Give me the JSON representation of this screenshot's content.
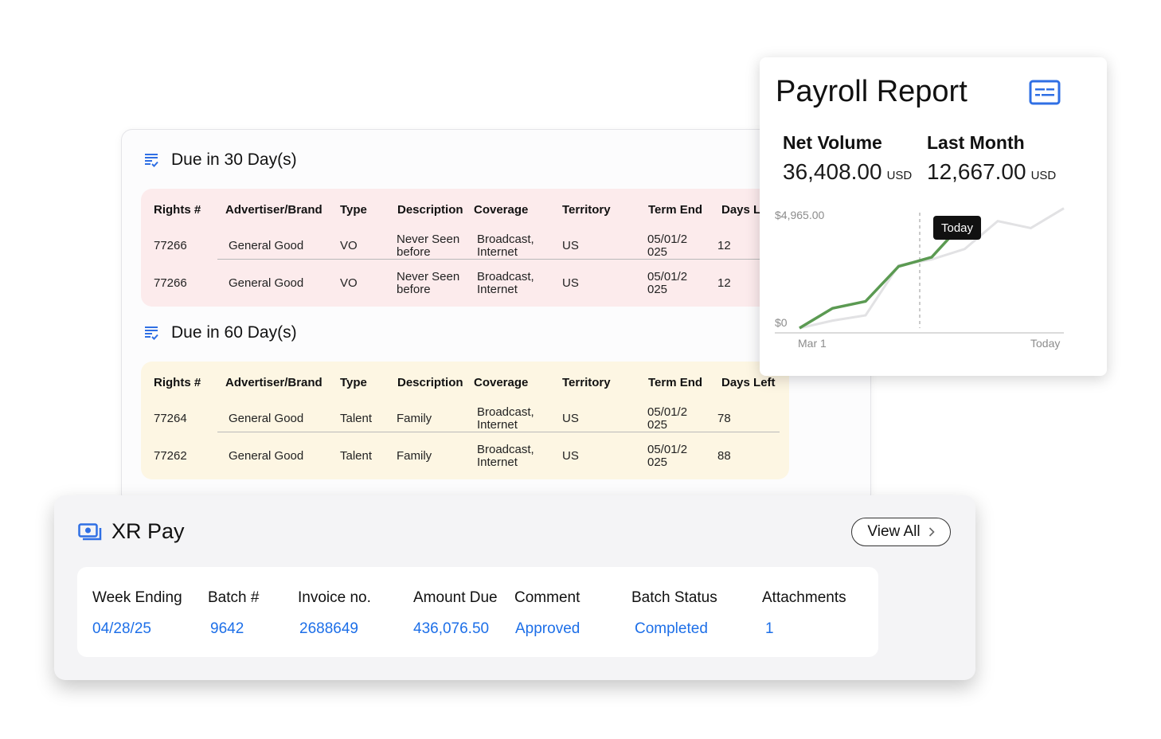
{
  "rights": {
    "sections": [
      {
        "title": "Due in 30 Day(s)",
        "headers": [
          "Rights #",
          "Advertiser/Brand",
          "Type",
          "Description",
          "Coverage",
          "Territory",
          "Term End",
          "Days Left"
        ],
        "rows": [
          [
            "77266",
            "General Good",
            "VO",
            "Never Seen before",
            "Broadcast, Internet",
            "US",
            "05/01/2 025",
            "12"
          ],
          [
            "77266",
            "General Good",
            "VO",
            "Never Seen before",
            "Broadcast, Internet",
            "US",
            "05/01/2 025",
            "12"
          ]
        ]
      },
      {
        "title": "Due in 60 Day(s)",
        "headers": [
          "Rights #",
          "Advertiser/Brand",
          "Type",
          "Description",
          "Coverage",
          "Territory",
          "Term End",
          "Days Left"
        ],
        "rows": [
          [
            "77264",
            "General Good",
            "Talent",
            "Family",
            "Broadcast, Internet",
            "US",
            "05/01/2 025",
            "78"
          ],
          [
            "77262",
            "General Good",
            "Talent",
            "Family",
            "Broadcast, Internet",
            "US",
            "05/01/2 025",
            "88"
          ]
        ]
      }
    ]
  },
  "payroll": {
    "title": "Payroll Report",
    "net_volume": {
      "label": "Net Volume",
      "value": "36,408.00",
      "unit": "USD"
    },
    "last_month": {
      "label": "Last Month",
      "value": "12,667.00",
      "unit": "USD"
    },
    "tooltip": "Today"
  },
  "chart_data": {
    "type": "line",
    "x_labels": [
      "Mar 1",
      "Today"
    ],
    "y_ticks": [
      "$4,965.00",
      "$0"
    ],
    "ylim": [
      0,
      4965
    ],
    "series": [
      {
        "values": [
          0,
          850,
          1150,
          2650,
          3050,
          4600
        ]
      },
      {
        "values": [
          0,
          320,
          550,
          2700,
          2950,
          3400,
          4600,
          4300,
          5150
        ]
      }
    ],
    "today_index": 5,
    "colors": {
      "current": "#5b9a52",
      "previous": "#e2e2e4"
    }
  },
  "xr_pay": {
    "title": "XR Pay",
    "view_all": "View All",
    "headers": [
      "Week Ending",
      "Batch #",
      "Invoice no.",
      "Amount Due",
      "Comment",
      "Batch Status",
      "Attachments"
    ],
    "row": [
      "04/28/25",
      "9642",
      "2688649",
      "436,076.50",
      "Approved",
      "Completed",
      "1"
    ],
    "link_color": "#1d6fe8"
  }
}
